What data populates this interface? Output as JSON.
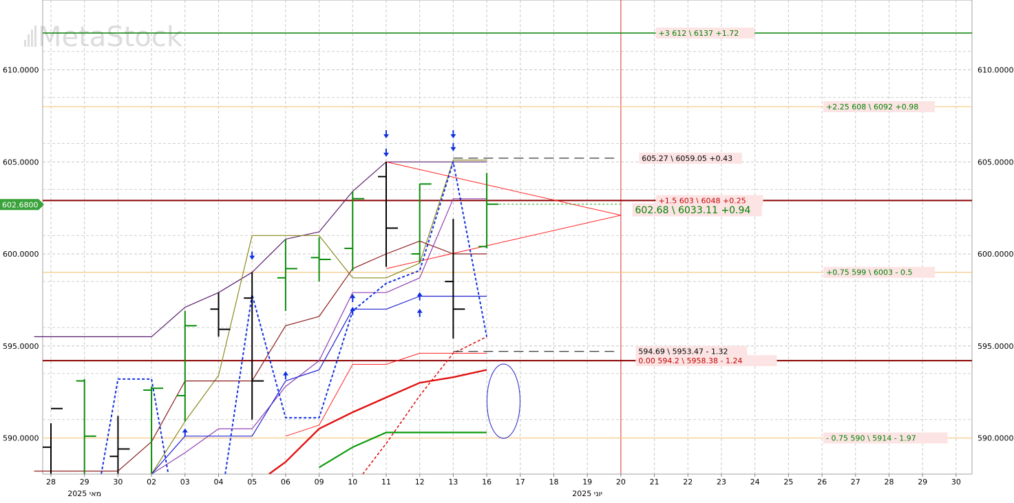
{
  "watermark": "MetaStock",
  "chart_data": {
    "type": "bar",
    "ylim": [
      588.0,
      613.0
    ],
    "y_ticks": [
      "610.0000",
      "605.0000",
      "600.0000",
      "595.0000",
      "590.0000"
    ],
    "y_tick_values": [
      610,
      605,
      600,
      595,
      590
    ],
    "x_ticks": [
      "28",
      "29",
      "30",
      "02",
      "03",
      "04",
      "05",
      "06",
      "09",
      "10",
      "11",
      "12",
      "13",
      "16",
      "17",
      "18",
      "19",
      "20",
      "21",
      "22",
      "23",
      "24",
      "25",
      "26",
      "27",
      "28",
      "29",
      "30"
    ],
    "month_labels": [
      {
        "text": "2025 מאי",
        "at_index": 1
      },
      {
        "text": "2025 יוני",
        "at_index": 16
      }
    ],
    "last_price": {
      "label": "602.6800",
      "value": 602.68
    },
    "vertical_marker_index": 17,
    "ohlc_bars": [
      {
        "i": 0,
        "high": 590.8,
        "low": 586.0,
        "open": 589.5,
        "close": 591.6,
        "color": "black"
      },
      {
        "i": 1,
        "high": 593.2,
        "low": 586.0,
        "open": 593.1,
        "close": 590.1,
        "color": "green"
      },
      {
        "i": 2,
        "high": 591.2,
        "low": 588.0,
        "open": 589.0,
        "close": 589.4,
        "color": "black"
      },
      {
        "i": 3,
        "high": 592.8,
        "low": 586.0,
        "open": 592.6,
        "close": 592.7,
        "color": "green"
      },
      {
        "i": 4,
        "high": 596.9,
        "low": 590.9,
        "open": 592.3,
        "close": 596.1,
        "color": "green"
      },
      {
        "i": 5,
        "high": 597.9,
        "low": 595.5,
        "open": 597.0,
        "close": 595.9,
        "color": "black"
      },
      {
        "i": 6,
        "high": 599.0,
        "low": 591.0,
        "open": 597.6,
        "close": 593.1,
        "color": "black"
      },
      {
        "i": 7,
        "high": 600.8,
        "low": 596.9,
        "open": 598.7,
        "close": 599.2,
        "color": "green"
      },
      {
        "i": 8,
        "high": 600.9,
        "low": 598.5,
        "open": 599.8,
        "close": 599.7,
        "color": "green"
      },
      {
        "i": 9,
        "high": 603.4,
        "low": 599.1,
        "open": 600.3,
        "close": 603.0,
        "color": "green"
      },
      {
        "i": 10,
        "high": 605.0,
        "low": 599.3,
        "open": 604.2,
        "close": 601.4,
        "color": "black"
      },
      {
        "i": 11,
        "high": 603.8,
        "low": 599.5,
        "open": 600.0,
        "close": 603.8,
        "color": "green"
      },
      {
        "i": 12,
        "high": 601.9,
        "low": 595.4,
        "open": 598.5,
        "close": 597.0,
        "color": "black"
      },
      {
        "i": 13,
        "high": 604.4,
        "low": 600.3,
        "open": 600.4,
        "close": 602.7,
        "color": "green"
      }
    ],
    "horizontal_levels": [
      {
        "value": 612.0,
        "color": "#008000",
        "width": 1.6,
        "label": "+3  612 \\ 6137   +1.72",
        "label_color": "#008000",
        "label_index": 18
      },
      {
        "value": 608.0,
        "color": "#f5c987",
        "width": 1.2,
        "label": "+2.25  608 \\ 6092   +0.98",
        "label_color": "#008000",
        "label_index": 23
      },
      {
        "value": 602.9,
        "color": "#8b0000",
        "width": 2.0,
        "label": "+1.5  603 \\ 6048   +0.25",
        "label_color": "#c00000",
        "label_index": 18
      },
      {
        "value": 599.0,
        "color": "#f5c987",
        "width": 1.2,
        "label": "+0.75  599 \\ 6003   - 0.5",
        "label_color": "#008000",
        "label_index": 23
      },
      {
        "value": 594.2,
        "color": "#8b0000",
        "width": 2.0,
        "label": "0.00  594.2 \\  5958.38    - 1.24",
        "label_color": "#c00000",
        "label_index": 17.4
      },
      {
        "value": 590.0,
        "color": "#f5c987",
        "width": 1.2,
        "label": "- 0.75  590 \\ 5914    - 1.97",
        "label_color": "#008000",
        "label_index": 23
      }
    ],
    "text_labels": [
      {
        "text": "605.27 \\ 6059.05  +0.43",
        "value": 605.2,
        "index": 17.5,
        "color": "#000000",
        "size": 11
      },
      {
        "text": "602.68 \\ 6033.11  +0.94",
        "value": 602.4,
        "index": 17.3,
        "color": "#008000",
        "size": 14
      },
      {
        "text": "594.69 \\ 5953.47   - 1.32",
        "value": 594.7,
        "index": 17.4,
        "color": "#000000",
        "size": 11
      }
    ],
    "lines": [
      {
        "name": "",
        "color": "#5a1e6e",
        "width": 1.2,
        "dash": "",
        "points": [
          [
            -0.5,
            595.5
          ],
          [
            3,
            595.5
          ],
          [
            4,
            597.1
          ],
          [
            5,
            597.9
          ],
          [
            6,
            599.0
          ],
          [
            7,
            600.8
          ],
          [
            8,
            601.2
          ],
          [
            9,
            603.4
          ],
          [
            10,
            605.0
          ],
          [
            12,
            605.0
          ],
          [
            13,
            605.0
          ]
        ]
      },
      {
        "name": "",
        "color": "#8a8a20",
        "width": 1.2,
        "dash": "",
        "points": [
          [
            3,
            586.0
          ],
          [
            4,
            590.9
          ],
          [
            5,
            593.4
          ],
          [
            6,
            601.0
          ],
          [
            8,
            601.0
          ],
          [
            9,
            598.7
          ],
          [
            10,
            598.7
          ],
          [
            11,
            599.5
          ],
          [
            12,
            605.1
          ],
          [
            13,
            605.1
          ]
        ]
      },
      {
        "name": "",
        "color": "#8b1a1a",
        "width": 1.2,
        "dash": "",
        "points": [
          [
            -0.5,
            588.2
          ],
          [
            2,
            588.2
          ],
          [
            3,
            589.8
          ],
          [
            4,
            593.1
          ],
          [
            6,
            593.1
          ],
          [
            7,
            596.1
          ],
          [
            8,
            596.6
          ],
          [
            9,
            599.2
          ],
          [
            10,
            600.0
          ],
          [
            11,
            600.7
          ],
          [
            12,
            600.0
          ],
          [
            13,
            600.0
          ]
        ]
      },
      {
        "name": "",
        "color": "#9040b0",
        "width": 1.2,
        "dash": "",
        "points": [
          [
            3,
            586.0
          ],
          [
            4,
            589.2
          ],
          [
            5,
            590.5
          ],
          [
            6,
            590.5
          ],
          [
            7,
            592.8
          ],
          [
            8,
            594.2
          ],
          [
            9,
            597.9
          ],
          [
            10,
            597.9
          ],
          [
            11,
            598.7
          ],
          [
            12,
            603.0
          ],
          [
            13,
            603.0
          ]
        ]
      },
      {
        "name": "",
        "color": "#2020d0",
        "width": 1.2,
        "dash": "",
        "points": [
          [
            3,
            586.0
          ],
          [
            4,
            590.1
          ],
          [
            6,
            590.1
          ],
          [
            7,
            593.1
          ],
          [
            8,
            593.7
          ],
          [
            9,
            597.0
          ],
          [
            10,
            597.0
          ],
          [
            11,
            597.7
          ],
          [
            13,
            597.7
          ]
        ]
      },
      {
        "name": "",
        "color": "#ff2020",
        "width": 1.0,
        "dash": "",
        "points": [
          [
            7,
            590.1
          ],
          [
            8,
            590.7
          ],
          [
            9,
            594.0
          ],
          [
            10,
            594.0
          ],
          [
            11,
            594.6
          ],
          [
            13,
            594.6
          ]
        ]
      },
      {
        "name": "",
        "color": "#ff2020",
        "width": 1.0,
        "dash": "",
        "points": [
          [
            10,
            605.0
          ],
          [
            17,
            602.1
          ],
          [
            10,
            599.2
          ]
        ]
      },
      {
        "name": "",
        "color": "#e01010",
        "width": 2.4,
        "dash": "",
        "points": [
          [
            6.5,
            586.0
          ],
          [
            7,
            588.7
          ],
          [
            8,
            590.5
          ],
          [
            9,
            591.4
          ],
          [
            10,
            592.2
          ],
          [
            11,
            593.0
          ],
          [
            12,
            593.3
          ],
          [
            13,
            593.7
          ]
        ]
      },
      {
        "name": "",
        "color": "#e01010",
        "width": 1.6,
        "dash": "4,3",
        "points": [
          [
            9.3,
            586.0
          ],
          [
            10,
            589.7
          ],
          [
            11,
            592.3
          ],
          [
            12,
            594.6
          ],
          [
            13,
            595.5
          ]
        ]
      },
      {
        "name": "",
        "color": "#0a9a0a",
        "width": 2.2,
        "dash": "",
        "points": [
          [
            8,
            588.4
          ],
          [
            9,
            589.5
          ],
          [
            10,
            590.3
          ],
          [
            13,
            590.3
          ]
        ]
      },
      {
        "name": "",
        "color": "#1030e0",
        "width": 2.0,
        "dash": "4,3",
        "points": [
          [
            1.5,
            586.0
          ],
          [
            2,
            593.2
          ],
          [
            3,
            593.2
          ],
          [
            3.5,
            586.0
          ]
        ]
      },
      {
        "name": "",
        "color": "#1030e0",
        "width": 2.0,
        "dash": "4,3",
        "points": [
          [
            5.2,
            586.0
          ],
          [
            6,
            597.8
          ],
          [
            7,
            591.1
          ],
          [
            8,
            591.1
          ],
          [
            9,
            596.9
          ],
          [
            10,
            598.4
          ],
          [
            11,
            599.1
          ],
          [
            12,
            605.0
          ],
          [
            13,
            595.5
          ]
        ]
      },
      {
        "name": "",
        "color": "#000000",
        "width": 1.0,
        "dash": "14,8",
        "points": [
          [
            12,
            605.2
          ],
          [
            16.8,
            605.2
          ]
        ]
      },
      {
        "name": "",
        "color": "#000000",
        "width": 1.0,
        "dash": "14,8",
        "points": [
          [
            12,
            594.7
          ],
          [
            16.8,
            594.7
          ]
        ]
      },
      {
        "name": "",
        "color": "#19a019",
        "width": 1.0,
        "dash": "3,3",
        "points": [
          [
            13,
            602.7
          ],
          [
            17,
            602.7
          ]
        ]
      }
    ],
    "arrows": [
      {
        "index": 10,
        "value": 606.5,
        "dir": "down"
      },
      {
        "index": 10,
        "value": 605.5,
        "dir": "down"
      },
      {
        "index": 12,
        "value": 606.5,
        "dir": "down"
      },
      {
        "index": 12,
        "value": 605.8,
        "dir": "down"
      },
      {
        "index": 6,
        "value": 599.9,
        "dir": "down"
      },
      {
        "index": 4,
        "value": 590.3,
        "dir": "up"
      },
      {
        "index": 7,
        "value": 593.4,
        "dir": "up"
      },
      {
        "index": 9,
        "value": 596.9,
        "dir": "up"
      },
      {
        "index": 9,
        "value": 597.6,
        "dir": "up"
      },
      {
        "index": 11,
        "value": 596.8,
        "dir": "up"
      },
      {
        "index": 11,
        "value": 597.7,
        "dir": "up"
      }
    ],
    "ellipse": {
      "index": 13.5,
      "value": 592.0,
      "color": "#2020c0"
    }
  }
}
